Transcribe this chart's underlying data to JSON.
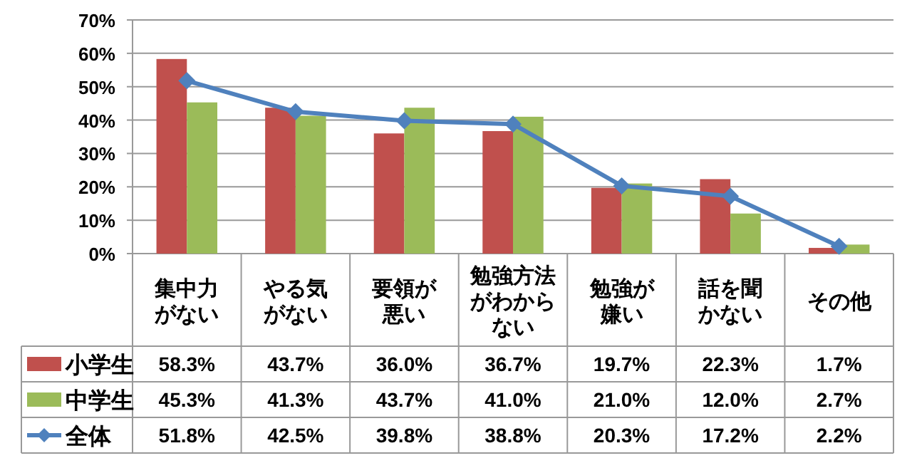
{
  "chart_data": {
    "type": "bar",
    "categories": [
      "集中力がない",
      "やる気がない",
      "要領が悪い",
      "勉強方法がわからない",
      "勉強が嫌い",
      "話を聞かない",
      "その他"
    ],
    "series": [
      {
        "name": "小学生",
        "color": "#c0504d",
        "values": [
          58.3,
          43.7,
          36.0,
          36.7,
          19.7,
          22.3,
          1.7
        ],
        "value_labels": [
          "58.3%",
          "43.7%",
          "36.0%",
          "36.7%",
          "19.7%",
          "22.3%",
          "1.7%"
        ]
      },
      {
        "name": "中学生",
        "color": "#9bbb59",
        "values": [
          45.3,
          41.3,
          43.7,
          41.0,
          21.0,
          12.0,
          2.7
        ],
        "value_labels": [
          "45.3%",
          "41.3%",
          "43.7%",
          "41.0%",
          "21.0%",
          "12.0%",
          "2.7%"
        ]
      },
      {
        "name": "全体",
        "type": "line",
        "color": "#4f81bd",
        "marker": "diamond",
        "values": [
          51.8,
          42.5,
          39.8,
          38.8,
          20.3,
          17.2,
          2.2
        ],
        "value_labels": [
          "51.8%",
          "42.5%",
          "39.8%",
          "38.8%",
          "20.3%",
          "17.2%",
          "2.2%"
        ]
      }
    ],
    "ylim": [
      0,
      70
    ],
    "yticks": [
      {
        "value": 0,
        "label": "0%"
      },
      {
        "value": 10,
        "label": "10%"
      },
      {
        "value": 20,
        "label": "20%"
      },
      {
        "value": 30,
        "label": "30%"
      },
      {
        "value": 40,
        "label": "40%"
      },
      {
        "value": 50,
        "label": "50%"
      },
      {
        "value": 60,
        "label": "60%"
      },
      {
        "value": 70,
        "label": "70%"
      }
    ],
    "grid": "y",
    "legend": "bottom left"
  }
}
